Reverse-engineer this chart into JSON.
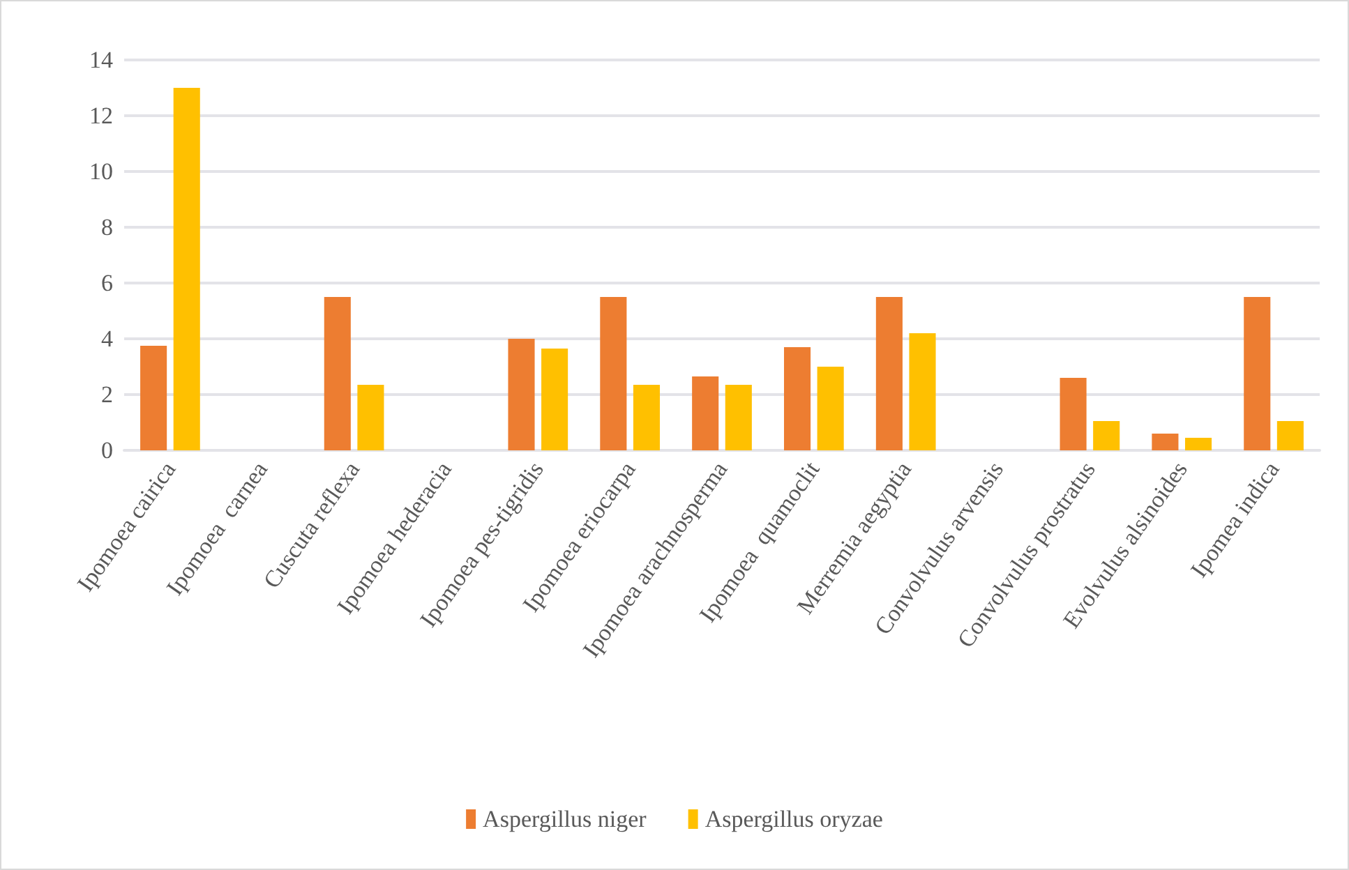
{
  "chart_data": {
    "type": "bar",
    "categories": [
      "Ipomoea cairica",
      "Ipomoea  carnea",
      "Cuscuta reflexa",
      "Ipomoea hederacia",
      "Ipomoea pes-tigridis",
      "Ipomoea eriocarpa",
      "Ipomoea arachnosperma",
      "Ipomoea  quamoclit",
      "Merremia aegyptia",
      "Convolvulus arvensis",
      "Convolvulus prostratus",
      "Evolvulus alsinoides",
      "Ipomea indica"
    ],
    "series": [
      {
        "name": "Aspergillus niger",
        "color": "#ed7d31",
        "values": [
          3.75,
          0,
          5.5,
          0,
          4.0,
          5.5,
          2.65,
          3.7,
          5.5,
          0,
          2.6,
          0.6,
          5.5
        ]
      },
      {
        "name": "Aspergillus oryzae",
        "color": "#ffc000",
        "values": [
          13,
          0,
          2.35,
          0,
          3.65,
          2.35,
          2.35,
          3.0,
          4.2,
          0,
          1.05,
          0.45,
          1.05
        ]
      }
    ],
    "ylim": [
      0,
      14
    ],
    "yticks": [
      0,
      2,
      4,
      6,
      8,
      10,
      12,
      14
    ],
    "grid": "y",
    "legend": "bottom"
  }
}
